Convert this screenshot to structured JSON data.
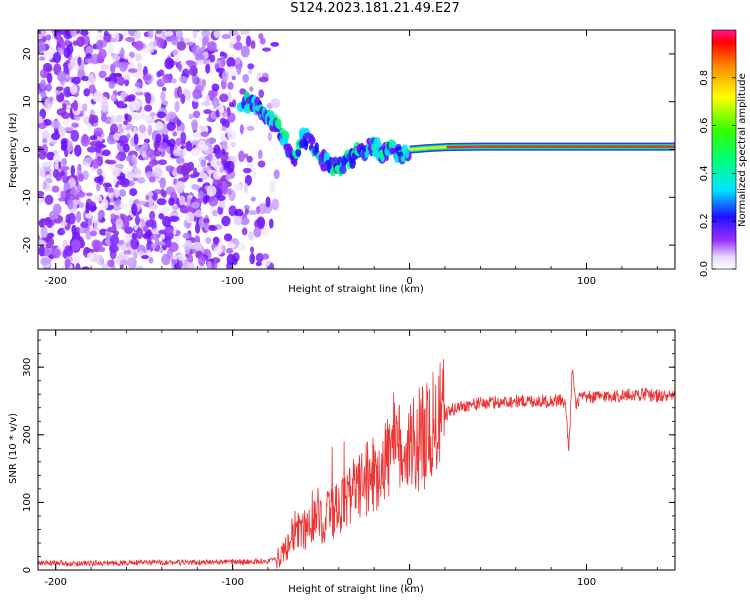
{
  "title": "S124.2023.181.21.49.E27",
  "chart_data": [
    {
      "type": "heatmap",
      "xlabel": "Height of straight line (km)",
      "ylabel": "Frequency (Hz)",
      "xlim": [
        -210,
        150
      ],
      "ylim": [
        -25,
        25
      ],
      "xticks": [
        "-200",
        "-100",
        "0",
        "100"
      ],
      "yticks": [
        "-20",
        "-10",
        "0",
        "10",
        "20"
      ],
      "colorbar": {
        "label": "Normalized spectral amplitude",
        "range": [
          0.0,
          1.0
        ],
        "ticks": [
          "0.0",
          "0.2",
          "0.4",
          "0.6",
          "0.8"
        ]
      },
      "ridge_frequency_trace": {
        "x": [
          -92,
          -85,
          -78,
          -72,
          -68,
          -64,
          -60,
          -55,
          -50,
          -45,
          -40,
          -35,
          -30,
          -25,
          -20,
          -15,
          -10,
          -5,
          0,
          10,
          20,
          40,
          60,
          80,
          100,
          120,
          150
        ],
        "y": [
          10,
          9,
          6,
          3,
          0,
          -2,
          3,
          1,
          -2,
          -3,
          -4,
          -2,
          -1,
          0,
          1,
          -1,
          0,
          -1,
          0,
          0.3,
          0.5,
          0.6,
          0.6,
          0.6,
          0.6,
          0.6,
          0.6
        ]
      }
    },
    {
      "type": "line",
      "xlabel": "Height of straight line (km)",
      "ylabel": "SNR (10 * v/v)",
      "xlim": [
        -210,
        150
      ],
      "ylim": [
        0,
        355
      ],
      "xticks": [
        "-200",
        "-100",
        "0",
        "100"
      ],
      "yticks": [
        "0",
        "100",
        "200",
        "300"
      ],
      "color": "#ee3333",
      "series": [
        {
          "x": [
            -210,
            -180,
            -150,
            -120,
            -100,
            -90,
            -80,
            -75,
            -70,
            -65,
            -60,
            -55,
            -50,
            -45,
            -40,
            -35,
            -30,
            -25,
            -20,
            -15,
            -10,
            -5,
            0,
            5,
            10,
            15,
            20,
            25,
            30,
            40,
            50,
            60,
            70,
            80,
            85,
            88,
            90,
            92,
            94,
            96,
            100,
            110,
            120,
            130,
            140,
            150
          ],
          "y": [
            10,
            10,
            11,
            11,
            12,
            12,
            13,
            15,
            30,
            60,
            55,
            80,
            70,
            85,
            90,
            105,
            120,
            130,
            145,
            160,
            175,
            180,
            185,
            192,
            200,
            215,
            230,
            238,
            243,
            246,
            248,
            250,
            250,
            250,
            252,
            245,
            180,
            300,
            240,
            255,
            255,
            257,
            258,
            260,
            258,
            255
          ]
        }
      ]
    }
  ]
}
